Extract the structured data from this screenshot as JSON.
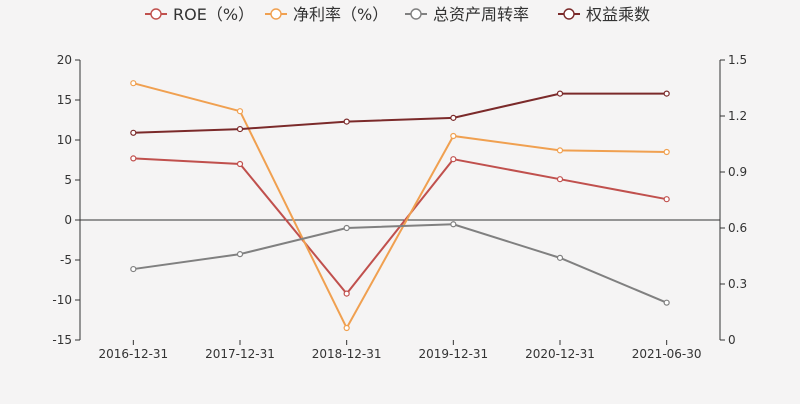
{
  "chart_data": {
    "type": "line",
    "categories": [
      "2016-12-31",
      "2017-12-31",
      "2018-12-31",
      "2019-12-31",
      "2020-12-31",
      "2021-06-30"
    ],
    "y_left": {
      "range": [
        -15,
        20
      ],
      "ticks": [
        -15,
        -10,
        -5,
        0,
        5,
        10,
        15,
        20
      ]
    },
    "y_right": {
      "range": [
        0,
        1.5
      ],
      "ticks": [
        0,
        0.3,
        0.6,
        0.9,
        1.2,
        1.5
      ]
    },
    "grid": false,
    "legend_position": "top",
    "series": [
      {
        "name": "ROE（%）",
        "axis": "left",
        "color": "#c0504d",
        "values": [
          7.7,
          7.0,
          -9.2,
          7.6,
          5.1,
          2.6
        ]
      },
      {
        "name": "净利率（%）",
        "axis": "left",
        "color": "#f0a050",
        "values": [
          17.1,
          13.6,
          -13.5,
          10.5,
          8.7,
          8.5
        ]
      },
      {
        "name": "总资产周转率",
        "axis": "right",
        "color": "#808080",
        "values": [
          0.38,
          0.46,
          0.6,
          0.62,
          0.44,
          0.2
        ]
      },
      {
        "name": "权益乘数",
        "axis": "right",
        "color": "#7b2a2a",
        "values": [
          1.11,
          1.13,
          1.17,
          1.19,
          1.32,
          1.32
        ]
      }
    ]
  }
}
